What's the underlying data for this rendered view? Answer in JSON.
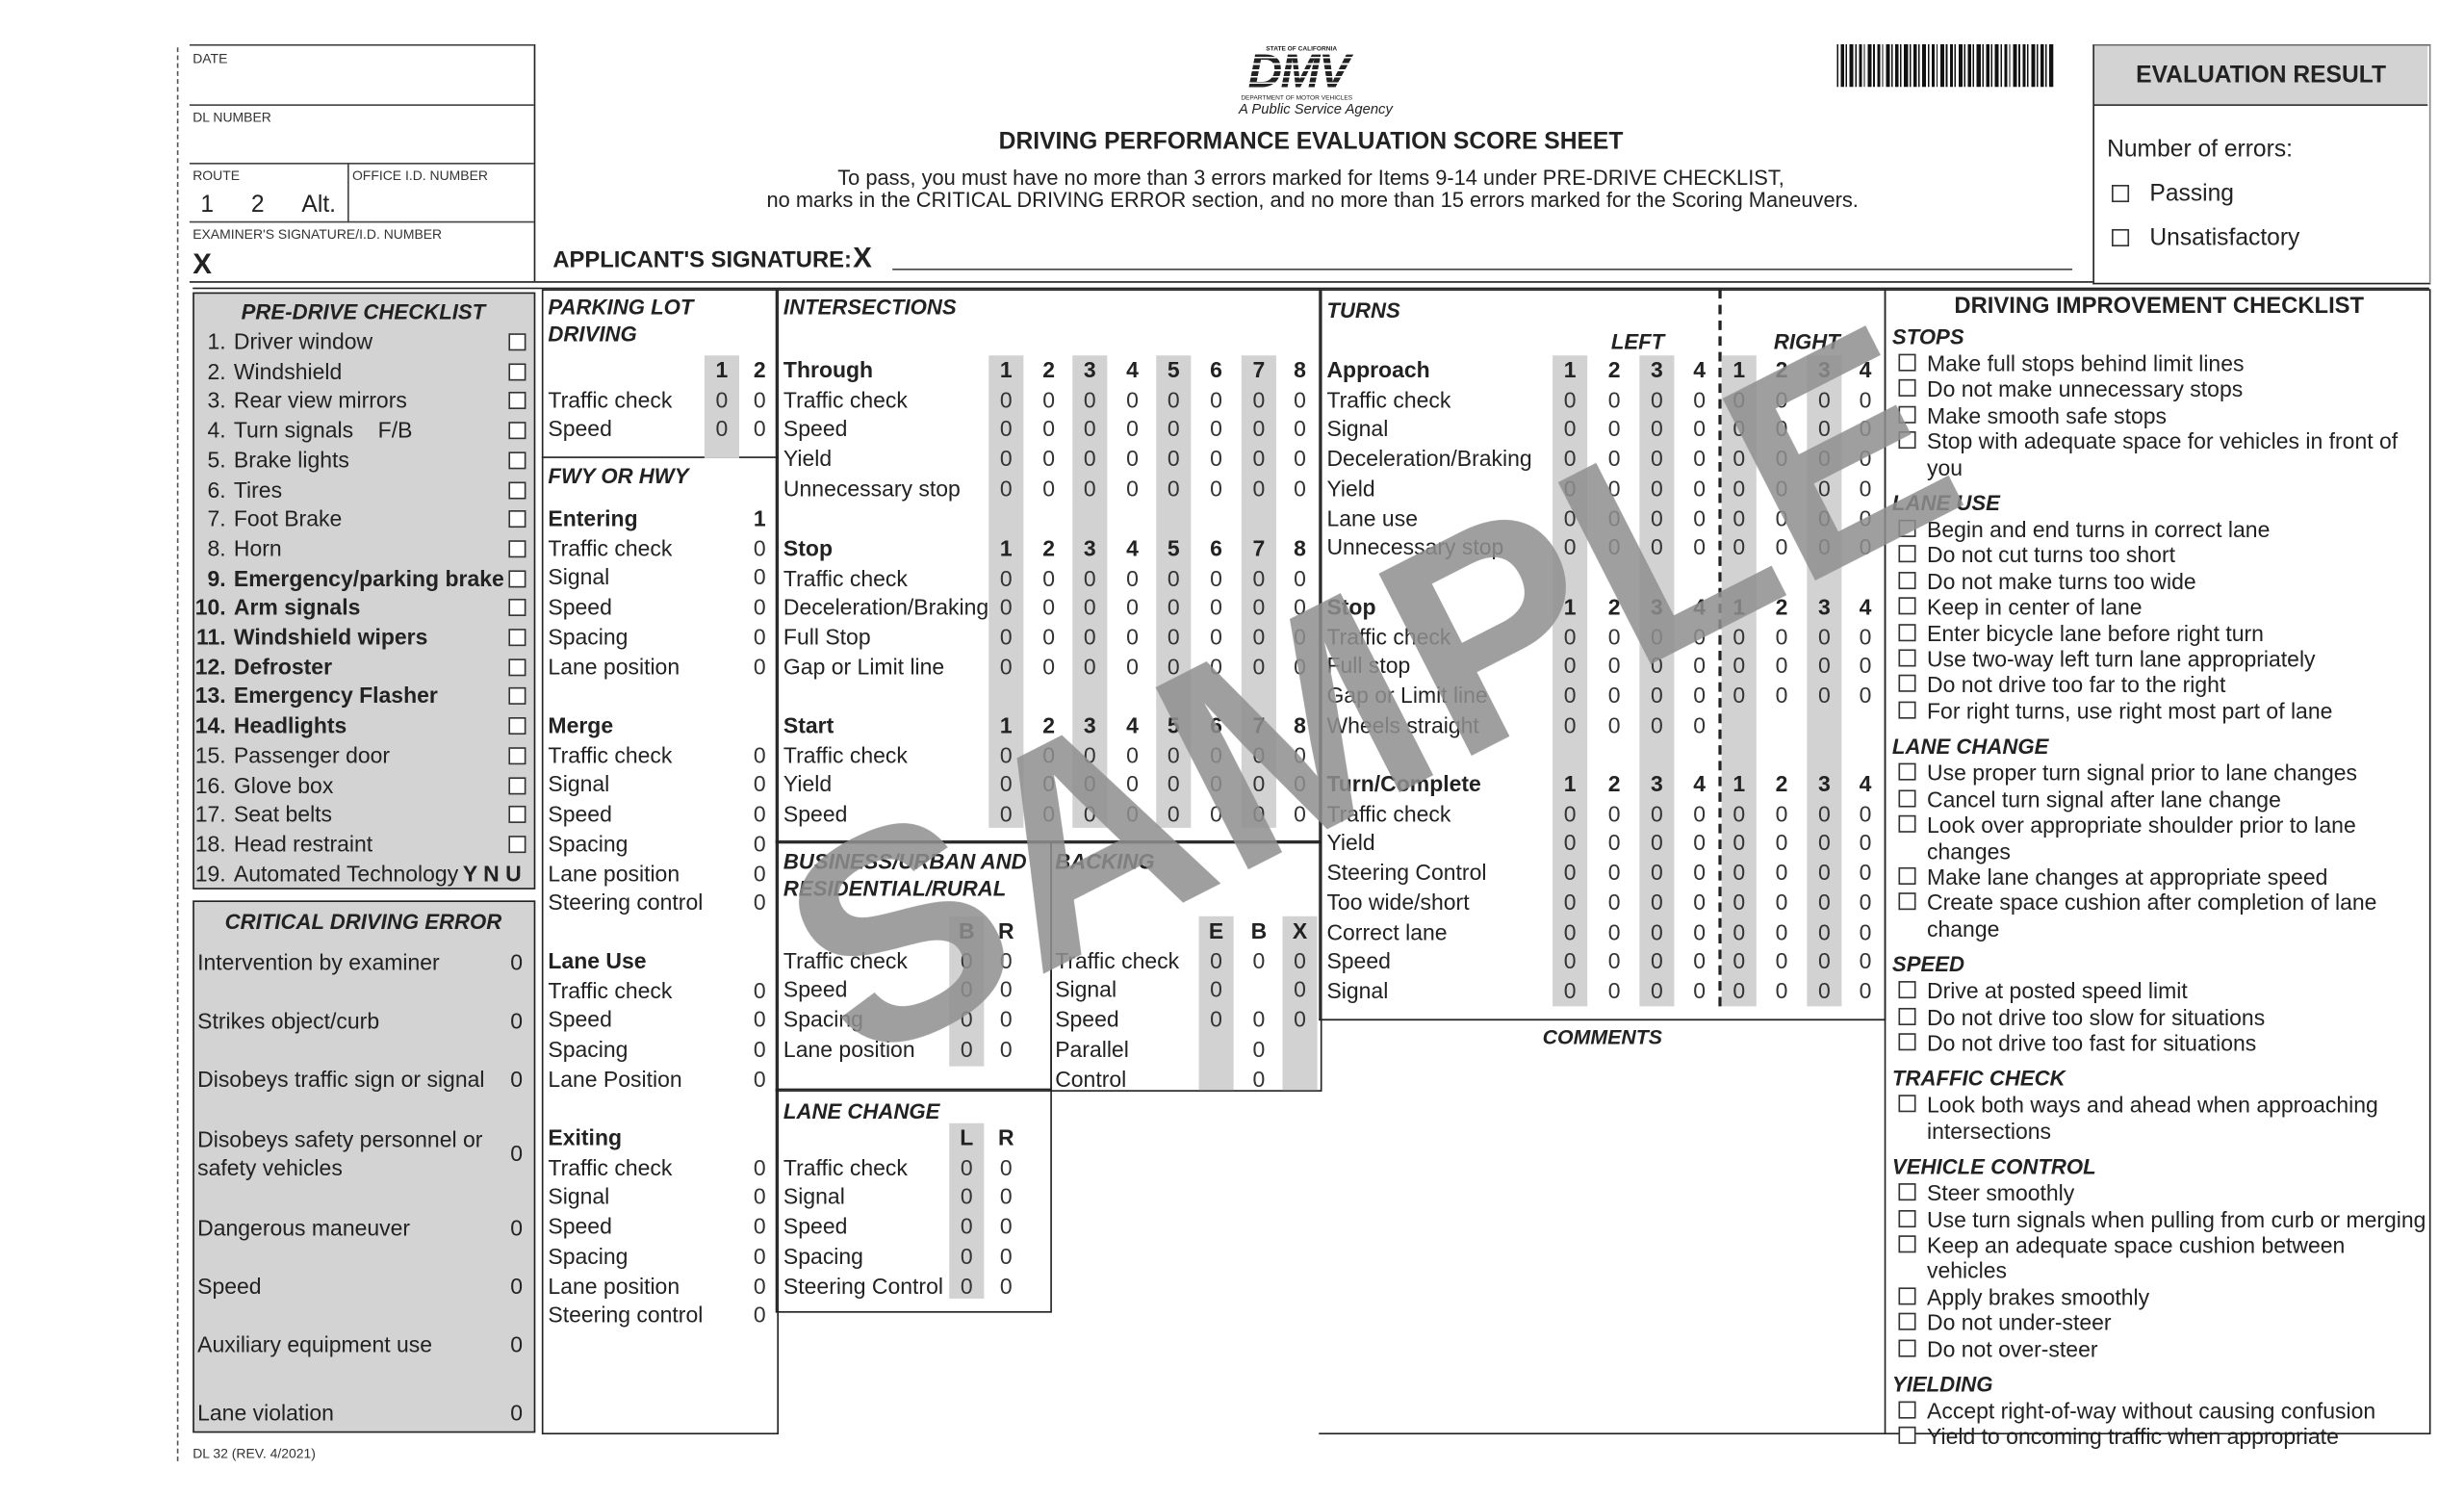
{
  "header": {
    "date_label": "DATE",
    "dl_number_label": "DL NUMBER",
    "route_label": "ROUTE",
    "route_options": [
      "1",
      "2",
      "Alt."
    ],
    "office_id_label": "OFFICE I.D. NUMBER",
    "examiner_label": "EXAMINER'S SIGNATURE/I.D. NUMBER",
    "examiner_x": "X",
    "applicant_label": "APPLICANT'S SIGNATURE:",
    "applicant_x": "X",
    "logo": {
      "state": "STATE OF CALIFORNIA",
      "mark": "DMV",
      "dept": "DEPARTMENT OF MOTOR VEHICLES",
      "tagline": "A Public Service Agency"
    },
    "title": "DRIVING PERFORMANCE EVALUATION SCORE SHEET",
    "instructions_1": "To pass, you must have no more than 3 errors marked for Items 9-14 under PRE-DRIVE CHECKLIST,",
    "instructions_2": "no marks in the CRITICAL DRIVING ERROR section, and no more than 15 errors marked for the Scoring Maneuvers."
  },
  "evaluation": {
    "title": "EVALUATION  RESULT",
    "errors_label": "Number of errors:",
    "options": [
      "Passing",
      "Unsatisfactory"
    ]
  },
  "predrive": {
    "title": "PRE-DRIVE CHECKLIST",
    "items": [
      {
        "n": "1.",
        "label": "Driver window",
        "bold": false
      },
      {
        "n": "2.",
        "label": "Windshield",
        "bold": false
      },
      {
        "n": "3.",
        "label": "Rear view mirrors",
        "bold": false
      },
      {
        "n": "4.",
        "label": "Turn signals    F/B",
        "bold": false
      },
      {
        "n": "5.",
        "label": "Brake lights",
        "bold": false
      },
      {
        "n": "6.",
        "label": "Tires",
        "bold": false
      },
      {
        "n": "7.",
        "label": "Foot Brake",
        "bold": false
      },
      {
        "n": "8.",
        "label": "Horn",
        "bold": false
      },
      {
        "n": "9.",
        "label": "Emergency/parking brake",
        "bold": true
      },
      {
        "n": "10.",
        "label": "Arm signals",
        "bold": true
      },
      {
        "n": "11.",
        "label": "Windshield wipers",
        "bold": true
      },
      {
        "n": "12.",
        "label": "Defroster",
        "bold": true
      },
      {
        "n": "13.",
        "label": "Emergency Flasher",
        "bold": true
      },
      {
        "n": "14.",
        "label": "Headlights",
        "bold": true
      },
      {
        "n": "15.",
        "label": "Passenger door",
        "bold": false
      },
      {
        "n": "16.",
        "label": "Glove box",
        "bold": false
      },
      {
        "n": "17.",
        "label": "Seat belts",
        "bold": false
      },
      {
        "n": "18.",
        "label": "Head restraint",
        "bold": false
      }
    ],
    "last_item": {
      "n": "19.",
      "label": "Automated Technology",
      "options": "Y N U"
    }
  },
  "critical": {
    "title": "CRITICAL DRIVING ERROR",
    "items": [
      {
        "label": "Intervention by examiner",
        "value": "0"
      },
      {
        "label": "Strikes object/curb",
        "value": "0"
      },
      {
        "label": "Disobeys traffic sign or signal",
        "value": "0"
      },
      {
        "label": "Disobeys safety personnel or safety vehicles",
        "value": "0"
      },
      {
        "label": "Dangerous maneuver",
        "value": "0"
      },
      {
        "label": "Speed",
        "value": "0"
      },
      {
        "label": "Auxiliary equipment use",
        "value": "0"
      },
      {
        "label": "Lane violation",
        "value": "0"
      }
    ]
  },
  "parking": {
    "title": "PARKING LOT DRIVING",
    "columns": [
      "1",
      "2"
    ],
    "groups": [
      {
        "header": "",
        "rows": [
          {
            "label": "Traffic check",
            "values": [
              "0",
              "0"
            ]
          },
          {
            "label": "Speed",
            "values": [
              "0",
              "0"
            ]
          }
        ]
      }
    ]
  },
  "fwy": {
    "title": "FWY OR HWY",
    "columns": [
      "1"
    ],
    "groups": [
      {
        "header": "Entering",
        "rows": [
          {
            "label": "Traffic check",
            "values": [
              "0"
            ]
          },
          {
            "label": "Signal",
            "values": [
              "0"
            ]
          },
          {
            "label": "Speed",
            "values": [
              "0"
            ]
          },
          {
            "label": "Spacing",
            "values": [
              "0"
            ]
          },
          {
            "label": "Lane position",
            "values": [
              "0"
            ]
          }
        ]
      },
      {
        "header": "Merge",
        "rows": [
          {
            "label": "Traffic check",
            "values": [
              "0"
            ]
          },
          {
            "label": "Signal",
            "values": [
              "0"
            ]
          },
          {
            "label": "Speed",
            "values": [
              "0"
            ]
          },
          {
            "label": "Spacing",
            "values": [
              "0"
            ]
          },
          {
            "label": "Lane position",
            "values": [
              "0"
            ]
          },
          {
            "label": "Steering control",
            "values": [
              "0"
            ]
          }
        ]
      },
      {
        "header": "Lane Use",
        "rows": [
          {
            "label": "Traffic check",
            "values": [
              "0"
            ]
          },
          {
            "label": "Speed",
            "values": [
              "0"
            ]
          },
          {
            "label": "Spacing",
            "values": [
              "0"
            ]
          },
          {
            "label": "Lane Position",
            "values": [
              "0"
            ]
          }
        ]
      },
      {
        "header": "Exiting",
        "rows": [
          {
            "label": "Traffic check",
            "values": [
              "0"
            ]
          },
          {
            "label": "Signal",
            "values": [
              "0"
            ]
          },
          {
            "label": "Speed",
            "values": [
              "0"
            ]
          },
          {
            "label": "Spacing",
            "values": [
              "0"
            ]
          },
          {
            "label": "Lane position",
            "values": [
              "0"
            ]
          },
          {
            "label": "Steering control",
            "values": [
              "0"
            ]
          }
        ]
      }
    ]
  },
  "intersections": {
    "title": "INTERSECTIONS",
    "columns": [
      "1",
      "2",
      "3",
      "4",
      "5",
      "6",
      "7",
      "8"
    ],
    "groups": [
      {
        "header": "Through",
        "rows": [
          {
            "label": "Traffic check",
            "values": [
              "0",
              "0",
              "0",
              "0",
              "0",
              "0",
              "0",
              "0"
            ]
          },
          {
            "label": "Speed",
            "values": [
              "0",
              "0",
              "0",
              "0",
              "0",
              "0",
              "0",
              "0"
            ]
          },
          {
            "label": "Yield",
            "values": [
              "0",
              "0",
              "0",
              "0",
              "0",
              "0",
              "0",
              "0"
            ]
          },
          {
            "label": "Unnecessary stop",
            "values": [
              "0",
              "0",
              "0",
              "0",
              "0",
              "0",
              "0",
              "0"
            ]
          }
        ]
      },
      {
        "header": "Stop",
        "rows": [
          {
            "label": "Traffic check",
            "values": [
              "0",
              "0",
              "0",
              "0",
              "0",
              "0",
              "0",
              "0"
            ]
          },
          {
            "label": "Deceleration/Braking",
            "values": [
              "0",
              "0",
              "0",
              "0",
              "0",
              "0",
              "0",
              "0"
            ]
          },
          {
            "label": "Full Stop",
            "values": [
              "0",
              "0",
              "0",
              "0",
              "0",
              "0",
              "0",
              "0"
            ]
          },
          {
            "label": "Gap or Limit line",
            "values": [
              "0",
              "0",
              "0",
              "0",
              "0",
              "0",
              "0",
              "0"
            ]
          }
        ]
      },
      {
        "header": "Start",
        "rows": [
          {
            "label": "Traffic check",
            "values": [
              "0",
              "0",
              "0",
              "0",
              "0",
              "0",
              "0",
              "0"
            ]
          },
          {
            "label": "Yield",
            "values": [
              "0",
              "0",
              "0",
              "0",
              "0",
              "0",
              "0",
              "0"
            ]
          },
          {
            "label": "Speed",
            "values": [
              "0",
              "0",
              "0",
              "0",
              "0",
              "0",
              "0",
              "0"
            ]
          }
        ]
      }
    ]
  },
  "turns": {
    "title": "TURNS",
    "left_label": "LEFT",
    "right_label": "RIGHT",
    "columns": [
      "1",
      "2",
      "3",
      "4",
      "1",
      "2",
      "3",
      "4"
    ],
    "groups": [
      {
        "header": "Approach",
        "rows": [
          {
            "label": "Traffic check",
            "values": [
              "0",
              "0",
              "0",
              "0",
              "0",
              "0",
              "0",
              "0"
            ]
          },
          {
            "label": "Signal",
            "values": [
              "0",
              "0",
              "0",
              "0",
              "0",
              "0",
              "0",
              "0"
            ]
          },
          {
            "label": "Deceleration/Braking",
            "values": [
              "0",
              "0",
              "0",
              "0",
              "0",
              "0",
              "0",
              "0"
            ]
          },
          {
            "label": "Yield",
            "values": [
              "0",
              "0",
              "0",
              "0",
              "0",
              "0",
              "0",
              "0"
            ]
          },
          {
            "label": "Lane use",
            "values": [
              "0",
              "0",
              "0",
              "0",
              "0",
              "0",
              "0",
              "0"
            ]
          },
          {
            "label": "Unnecessary stop",
            "values": [
              "0",
              "0",
              "0",
              "0",
              "0",
              "0",
              "0",
              "0"
            ]
          }
        ]
      },
      {
        "header": "Stop",
        "rows": [
          {
            "label": "Traffic check",
            "values": [
              "0",
              "0",
              "0",
              "0",
              "0",
              "0",
              "0",
              "0"
            ]
          },
          {
            "label": "Full stop",
            "values": [
              "0",
              "0",
              "0",
              "0",
              "0",
              "0",
              "0",
              "0"
            ]
          },
          {
            "label": "Gap or Limit line",
            "values": [
              "0",
              "0",
              "0",
              "0",
              "0",
              "0",
              "0",
              "0"
            ]
          },
          {
            "label": "Wheels straight",
            "values": [
              "0",
              "0",
              "0",
              "0",
              null,
              null,
              null,
              null
            ]
          }
        ]
      },
      {
        "header": "Turn/Complete",
        "rows": [
          {
            "label": "Traffic check",
            "values": [
              "0",
              "0",
              "0",
              "0",
              "0",
              "0",
              "0",
              "0"
            ]
          },
          {
            "label": "Yield",
            "values": [
              "0",
              "0",
              "0",
              "0",
              "0",
              "0",
              "0",
              "0"
            ]
          },
          {
            "label": "Steering Control",
            "values": [
              "0",
              "0",
              "0",
              "0",
              "0",
              "0",
              "0",
              "0"
            ]
          },
          {
            "label": "Too wide/short",
            "values": [
              "0",
              "0",
              "0",
              "0",
              "0",
              "0",
              "0",
              "0"
            ]
          },
          {
            "label": "Correct lane",
            "values": [
              "0",
              "0",
              "0",
              "0",
              "0",
              "0",
              "0",
              "0"
            ]
          },
          {
            "label": "Speed",
            "values": [
              "0",
              "0",
              "0",
              "0",
              "0",
              "0",
              "0",
              "0"
            ]
          },
          {
            "label": "Signal",
            "values": [
              "0",
              "0",
              "0",
              "0",
              "0",
              "0",
              "0",
              "0"
            ]
          }
        ]
      }
    ],
    "comments_label": "COMMENTS"
  },
  "business": {
    "title": "BUSINESS/URBAN AND RESIDENTIAL/RURAL",
    "columns": [
      "B",
      "R"
    ],
    "groups": [
      {
        "header": "",
        "rows": [
          {
            "label": "Traffic check",
            "values": [
              "0",
              "0"
            ]
          },
          {
            "label": "Speed",
            "values": [
              "0",
              "0"
            ]
          },
          {
            "label": "Spacing",
            "values": [
              "0",
              "0"
            ]
          },
          {
            "label": "Lane position",
            "values": [
              "0",
              "0"
            ]
          }
        ]
      }
    ]
  },
  "backing": {
    "title": "BACKING",
    "columns": [
      "E",
      "B",
      "X"
    ],
    "groups": [
      {
        "header": "",
        "rows": [
          {
            "label": "Traffic check",
            "values": [
              "0",
              "0",
              "0"
            ]
          },
          {
            "label": "Signal",
            "values": [
              "0",
              null,
              "0"
            ]
          },
          {
            "label": "Speed",
            "values": [
              "0",
              "0",
              "0"
            ]
          },
          {
            "label": "Parallel",
            "values": [
              null,
              "0",
              null
            ]
          },
          {
            "label": "Control",
            "values": [
              null,
              "0",
              null
            ]
          }
        ]
      }
    ]
  },
  "lane_change": {
    "title": "LANE CHANGE",
    "columns": [
      "L",
      "R"
    ],
    "groups": [
      {
        "header": "",
        "rows": [
          {
            "label": "Traffic check",
            "values": [
              "0",
              "0"
            ]
          },
          {
            "label": "Signal",
            "values": [
              "0",
              "0"
            ]
          },
          {
            "label": "Speed",
            "values": [
              "0",
              "0"
            ]
          },
          {
            "label": "Spacing",
            "values": [
              "0",
              "0"
            ]
          },
          {
            "label": "Steering Control",
            "values": [
              "0",
              "0"
            ]
          }
        ]
      }
    ]
  },
  "improvement": {
    "title": "DRIVING IMPROVEMENT CHECKLIST",
    "sections": [
      {
        "heading": "STOPS",
        "items": [
          "Make full stops behind limit lines",
          "Do not make unnecessary stops",
          "Make smooth safe stops",
          "Stop with adequate space for vehicles in front of you"
        ]
      },
      {
        "heading": "LANE USE",
        "items": [
          "Begin and end turns in correct lane",
          "Do not cut turns too short",
          "Do not make turns too wide",
          "Keep in center of lane",
          "Enter bicycle lane before right turn",
          "Use two-way left turn lane appropriately",
          "Do not drive too far to the right",
          "For right turns, use right most part of lane"
        ]
      },
      {
        "heading": "LANE CHANGE",
        "items": [
          "Use proper turn signal prior to lane changes",
          "Cancel turn signal after lane change",
          "Look over appropriate shoulder prior to lane changes",
          "Make lane changes at appropriate speed",
          "Create space cushion after completion of lane change"
        ]
      },
      {
        "heading": "SPEED",
        "items": [
          "Drive at posted speed limit",
          "Do not drive too slow for situations",
          "Do not drive too fast for situations"
        ]
      },
      {
        "heading": "TRAFFIC CHECK",
        "items": [
          "Look both ways and ahead when approaching intersections"
        ]
      },
      {
        "heading": "VEHICLE CONTROL",
        "items": [
          "Steer smoothly",
          "Use turn signals when pulling from curb or merging",
          "Keep an adequate space cushion between vehicles",
          "Apply brakes smoothly",
          "Do not under-steer",
          "Do not over-steer"
        ]
      },
      {
        "heading": "YIELDING",
        "items": [
          "Accept right-of-way without causing confusion",
          "Yield to oncoming traffic when appropriate"
        ]
      }
    ]
  },
  "footer": {
    "form_number": "DL 32 (REV. 4/2021)"
  },
  "watermark": "SAMPLE",
  "colors": {
    "shade": "#d2d2d2",
    "ink": "#222222",
    "watermark": "#8f8f8f"
  }
}
